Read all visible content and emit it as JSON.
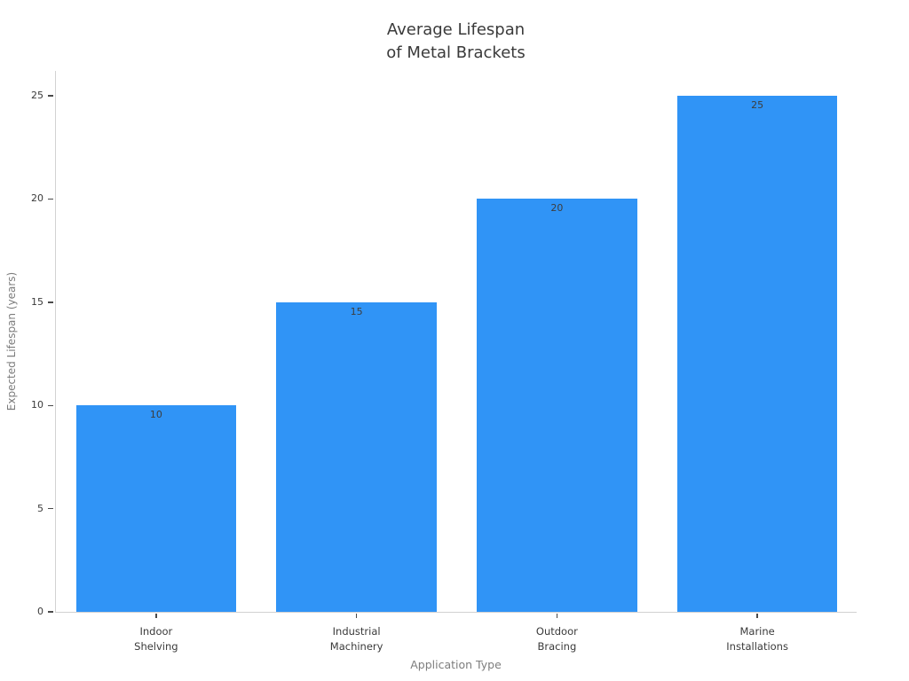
{
  "chart_data": {
    "type": "bar",
    "title": "Average Lifespan\nof Metal Brackets",
    "xlabel": "Application Type",
    "ylabel": "Expected Lifespan (years)",
    "categories": [
      "Indoor\nShelving",
      "Industrial\nMachinery",
      "Outdoor\nBracing",
      "Marine\nInstallations"
    ],
    "values": [
      10,
      15,
      20,
      25
    ],
    "bar_labels": [
      "10",
      "15",
      "20",
      "25"
    ],
    "yticks": [
      0,
      5,
      10,
      15,
      20,
      25
    ],
    "ylim": [
      0,
      26.25
    ],
    "bar_width_fraction": 0.8,
    "grid": false,
    "legend_position": "none",
    "colors": {
      "bar_fill": "#3094f6",
      "spine": "#d2d2d2",
      "tick_mark": "#4a4a4a",
      "tick_label": "#3a3a3a",
      "axis_title": "#7d7d7d",
      "chart_title": "#3a3a3a",
      "bar_value_label": "#3d3d3d",
      "background": "#ffffff"
    }
  }
}
